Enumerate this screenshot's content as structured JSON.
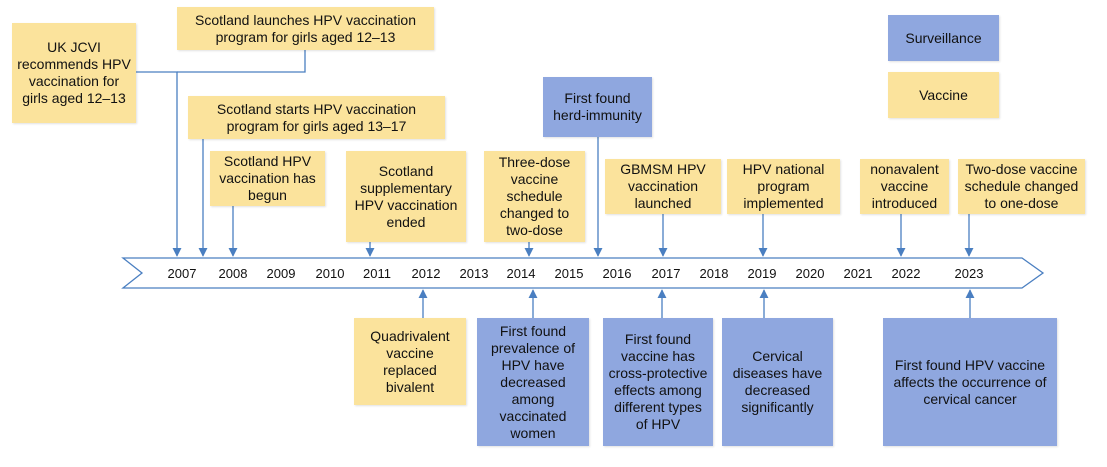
{
  "legend": {
    "surveillance": "Surveillance",
    "vaccine": "Vaccine"
  },
  "colors": {
    "vaccine": "#fbe39c",
    "surveillance": "#8fa7df",
    "line": "#4a7fc1"
  },
  "years": [
    "2007",
    "2008",
    "2009",
    "2010",
    "2011",
    "2012",
    "2013",
    "2014",
    "2015",
    "2016",
    "2017",
    "2018",
    "2019",
    "2020",
    "2021",
    "2022",
    "2023"
  ],
  "events_above": [
    {
      "id": "jcvi",
      "type": "vaccine",
      "text": "UK JCVI recommends HPV vaccination for girls aged 12–13"
    },
    {
      "id": "scot-launch",
      "type": "vaccine",
      "text": "Scotland launches HPV vaccination program for girls aged 12–13"
    },
    {
      "id": "scot-13-17",
      "type": "vaccine",
      "text": "Scotland starts HPV vaccination program for girls aged 13–17"
    },
    {
      "id": "scot-begun",
      "type": "vaccine",
      "text": "Scotland HPV vaccination has begun"
    },
    {
      "id": "scot-supp",
      "type": "vaccine",
      "text": "Scotland supplementary HPV vaccination ended"
    },
    {
      "id": "three-two",
      "type": "vaccine",
      "text": "Three-dose vaccine schedule changed to two-dose"
    },
    {
      "id": "herd",
      "type": "surveillance",
      "text": "First found herd-immunity"
    },
    {
      "id": "gbmsm",
      "type": "vaccine",
      "text": "GBMSM HPV vaccination launched"
    },
    {
      "id": "national",
      "type": "vaccine",
      "text": "HPV national program implemented"
    },
    {
      "id": "nonavalent",
      "type": "vaccine",
      "text": "nonavalent vaccine introduced"
    },
    {
      "id": "two-one",
      "type": "vaccine",
      "text": "Two-dose vaccine schedule changed to one-dose"
    }
  ],
  "events_below": [
    {
      "id": "quadrivalent",
      "type": "vaccine",
      "text": "Quadrivalent vaccine replaced bivalent"
    },
    {
      "id": "prevalence",
      "type": "surveillance",
      "text": "First found prevalence of HPV have decreased among vaccinated women"
    },
    {
      "id": "cross",
      "type": "surveillance",
      "text": "First found vaccine has cross-protective effects among different types of HPV"
    },
    {
      "id": "cervical-dis",
      "type": "surveillance",
      "text": "Cervical diseases have decreased significantly"
    },
    {
      "id": "cervical-cancer",
      "type": "surveillance",
      "text": "First found HPV vaccine affects the occurrence of cervical cancer"
    }
  ]
}
